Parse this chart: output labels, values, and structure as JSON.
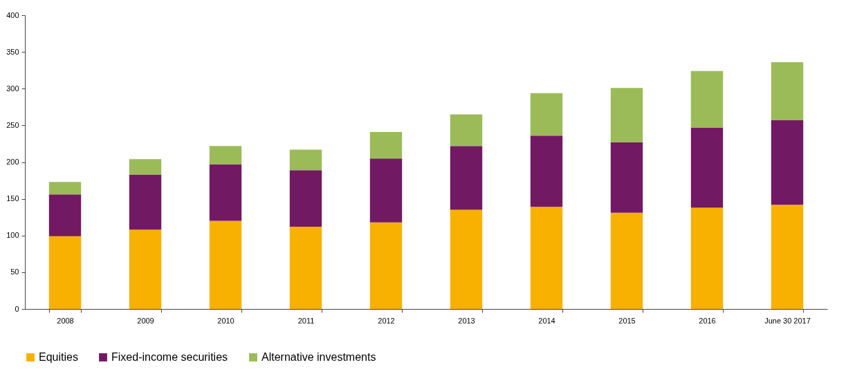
{
  "chart_data": {
    "type": "bar",
    "stacked": true,
    "categories": [
      "2008",
      "2009",
      "2010",
      "2011",
      "2012",
      "2013",
      "2014",
      "2015",
      "2016",
      "June 30 2017"
    ],
    "series": [
      {
        "name": "Equities",
        "color": "#f8b100",
        "values": [
          99,
          108,
          120,
          112,
          118,
          135,
          139,
          131,
          138,
          142
        ]
      },
      {
        "name": "Fixed-income securities",
        "color": "#721963",
        "values": [
          57,
          75,
          77,
          77,
          87,
          87,
          97,
          96,
          109,
          115
        ]
      },
      {
        "name": "Alternative investments",
        "color": "#9bbb59",
        "values": [
          17,
          21,
          25,
          28,
          36,
          43,
          58,
          74,
          77,
          79
        ]
      }
    ],
    "ylim": [
      0,
      400
    ],
    "yticks": [
      0,
      50,
      100,
      150,
      200,
      250,
      300,
      350,
      400
    ],
    "grid": false,
    "legend": "bottom"
  }
}
